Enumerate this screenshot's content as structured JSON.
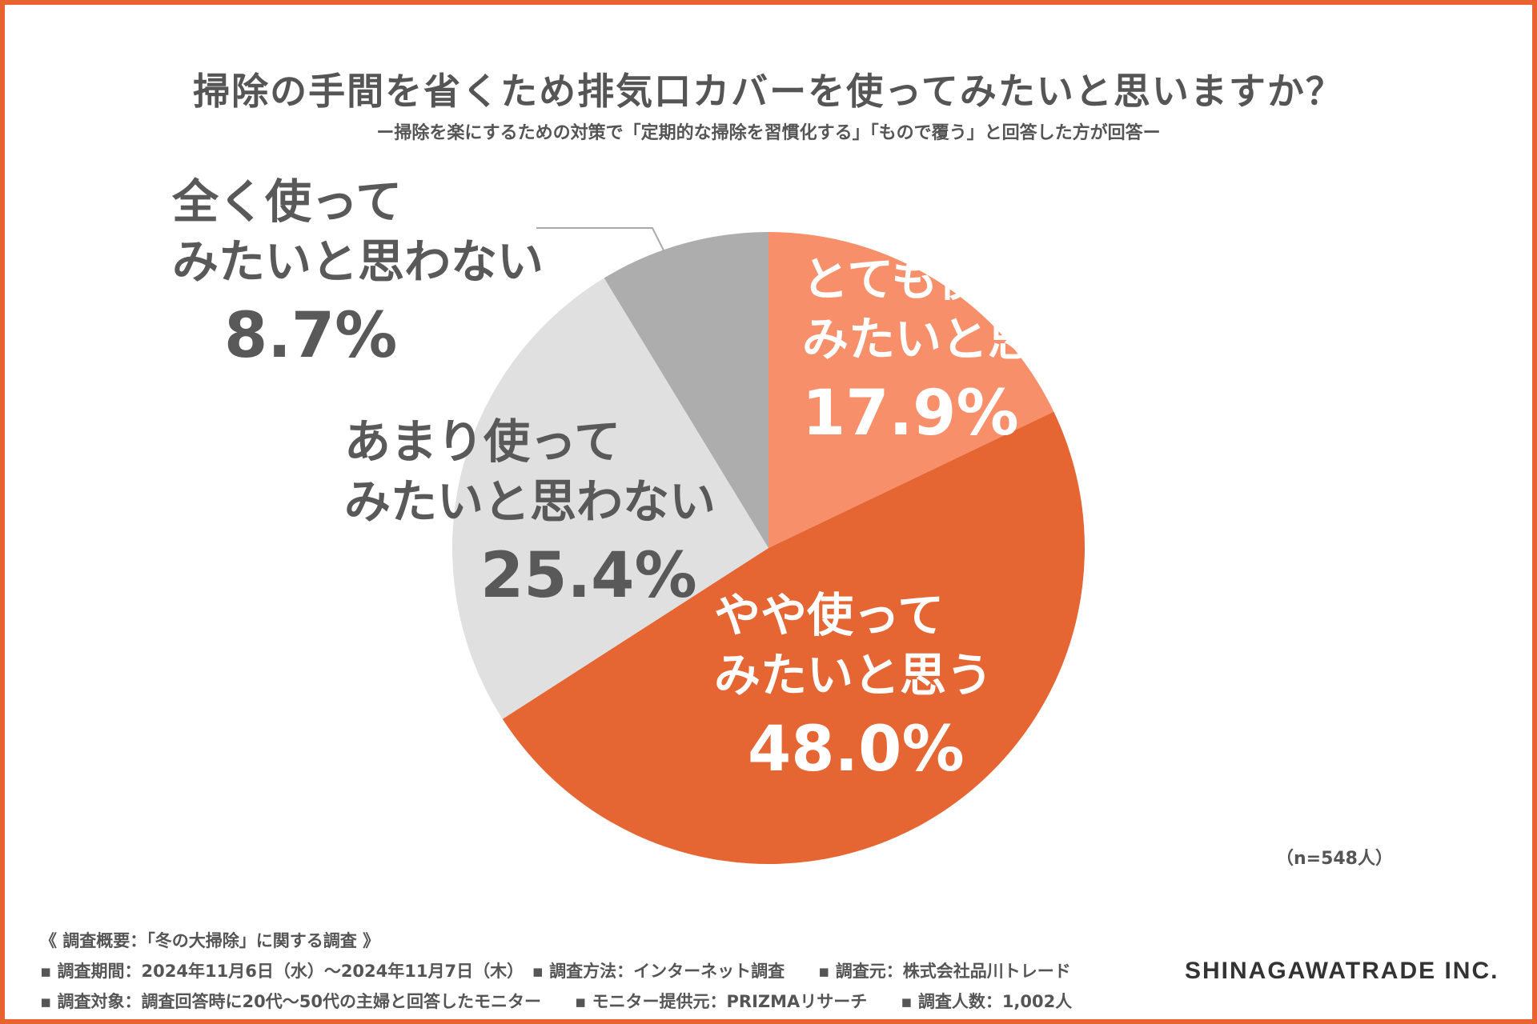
{
  "header": {
    "title": "掃除の手間を省くため排気口カバーを使ってみたいと思いますか？",
    "subtitle": "ー掃除を楽にするための対策で「定期的な掃除を習慣化する」「もので覆う」と回答した方が回答ー"
  },
  "chart_data": {
    "type": "pie",
    "title": "掃除の手間を省くため排気口カバーを使ってみたいと思いますか？",
    "slices": [
      {
        "name": "とても使ってみたいと思う",
        "line1": "とても使って",
        "line2": "みたいと思う",
        "value": 17.9,
        "pct_label": "17.9%",
        "color": "#F7906A",
        "label_color": "#FFFFFF"
      },
      {
        "name": "やや使ってみたいと思う",
        "line1": "やや使って",
        "line2": "みたいと思う",
        "value": 48.0,
        "pct_label": "48.0%",
        "color": "#E56533",
        "label_color": "#FFFFFF"
      },
      {
        "name": "あまり使ってみたいと思わない",
        "line1": "あまり使って",
        "line2": "みたいと思わない",
        "value": 25.4,
        "pct_label": "25.4%",
        "color": "#E0E0E0",
        "label_color": "#595959"
      },
      {
        "name": "全く使ってみたいと思わない",
        "line1": "全く使って",
        "line2": "みたいと思わない",
        "value": 8.7,
        "pct_label": "8.7%",
        "color": "#ADADAD",
        "label_color": "#595959"
      }
    ],
    "sample_size": "（n=548人）"
  },
  "footer": {
    "line1": "《 調査概要：「冬の大掃除」に関する調査 》",
    "line2": "▪ 調査期間：2024年11月6日（水）～2024年11月7日（木）　▪ 調査方法：インターネット調査　　▪ 調査元：株式会社品川トレード",
    "line3": "▪ 調査対象：調査回答時に20代～50代の主婦と回答したモニター　　▪ モニター提供元：PRIZMAリサーチ　　▪ 調査人数：1,002人",
    "brand": "SHINAGAWATRADE INC."
  },
  "colors": {
    "accent": "#E8632F",
    "text": "#555555"
  }
}
